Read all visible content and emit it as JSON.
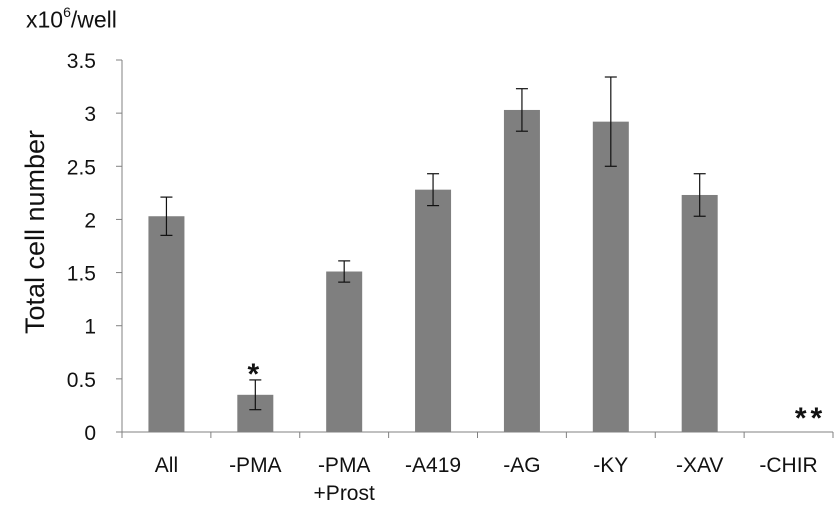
{
  "unit_label": {
    "prefix": "x10",
    "exponent": "6",
    "suffix": "/well"
  },
  "chart_data": {
    "type": "bar",
    "ylabel": "Total cell number",
    "xlabel": "",
    "ylim": [
      0,
      3.5
    ],
    "yticks": [
      "0",
      "0.5",
      "1",
      "1.5",
      "2",
      "2.5",
      "3",
      "3.5"
    ],
    "categories": [
      [
        "All"
      ],
      [
        "-PMA"
      ],
      [
        "-PMA",
        "+Prost"
      ],
      [
        "-A419"
      ],
      [
        "-AG"
      ],
      [
        "-KY"
      ],
      [
        "-XAV"
      ],
      [
        "-CHIR"
      ]
    ],
    "values": [
      2.03,
      0.35,
      1.51,
      2.28,
      3.03,
      2.92,
      2.23,
      0
    ],
    "errors": [
      0.18,
      0.14,
      0.1,
      0.15,
      0.2,
      0.42,
      0.2,
      0
    ],
    "annotations": [
      {
        "category_index": 1,
        "text": "*"
      },
      {
        "category_index": 7,
        "text": "**"
      }
    ],
    "bar_color": "#7f7f7f",
    "grid": false,
    "legend": "none"
  }
}
